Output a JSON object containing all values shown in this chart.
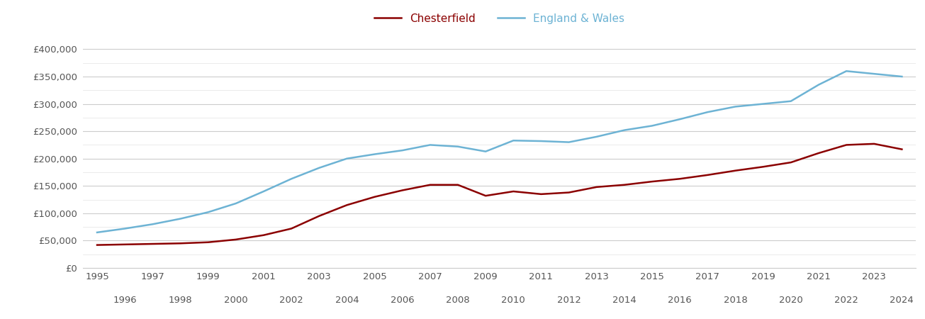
{
  "chesterfield": {
    "years": [
      1995,
      1996,
      1997,
      1998,
      1999,
      2000,
      2001,
      2002,
      2003,
      2004,
      2005,
      2006,
      2007,
      2008,
      2009,
      2010,
      2011,
      2012,
      2013,
      2014,
      2015,
      2016,
      2017,
      2018,
      2019,
      2020,
      2021,
      2022,
      2023,
      2024
    ],
    "values": [
      42000,
      43000,
      44000,
      45000,
      47000,
      52000,
      60000,
      72000,
      95000,
      115000,
      130000,
      142000,
      152000,
      152000,
      132000,
      140000,
      135000,
      138000,
      148000,
      152000,
      158000,
      163000,
      170000,
      178000,
      185000,
      193000,
      210000,
      225000,
      227000,
      217000
    ]
  },
  "england_wales": {
    "years": [
      1995,
      1996,
      1997,
      1998,
      1999,
      2000,
      2001,
      2002,
      2003,
      2004,
      2005,
      2006,
      2007,
      2008,
      2009,
      2010,
      2011,
      2012,
      2013,
      2014,
      2015,
      2016,
      2017,
      2018,
      2019,
      2020,
      2021,
      2022,
      2023,
      2024
    ],
    "values": [
      65000,
      72000,
      80000,
      90000,
      102000,
      118000,
      140000,
      163000,
      183000,
      200000,
      208000,
      215000,
      225000,
      222000,
      213000,
      233000,
      232000,
      230000,
      240000,
      252000,
      260000,
      272000,
      285000,
      295000,
      300000,
      305000,
      335000,
      360000,
      355000,
      350000
    ]
  },
  "chesterfield_color": "#8b0000",
  "england_wales_color": "#6db3d4",
  "background_color": "#ffffff",
  "major_grid_color": "#cccccc",
  "minor_grid_color": "#e8e8e8",
  "ylim": [
    0,
    420000
  ],
  "yticks": [
    0,
    50000,
    100000,
    150000,
    200000,
    250000,
    300000,
    350000,
    400000
  ],
  "odd_years": [
    1995,
    1997,
    1999,
    2001,
    2003,
    2005,
    2007,
    2009,
    2011,
    2013,
    2015,
    2017,
    2019,
    2021,
    2023
  ],
  "even_years": [
    1996,
    1998,
    2000,
    2002,
    2004,
    2006,
    2008,
    2010,
    2012,
    2014,
    2016,
    2018,
    2020,
    2022,
    2024
  ],
  "legend_labels": [
    "Chesterfield",
    "England & Wales"
  ],
  "tick_color": "#555555",
  "tick_fontsize": 9.5,
  "legend_fontsize": 11
}
